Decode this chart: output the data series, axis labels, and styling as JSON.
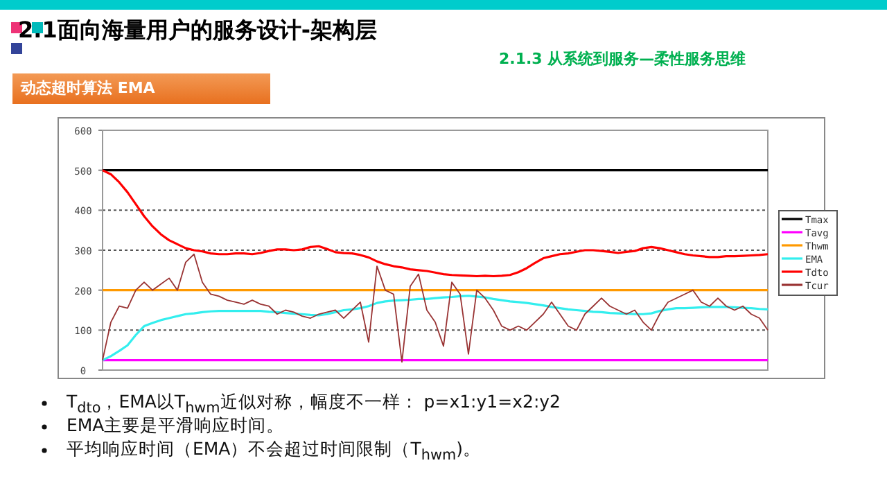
{
  "chart_data": {
    "type": "line",
    "title": "2.1面向海量用户的服务设计-架构层",
    "subtitle": "2.1.3 从系统到服务—柔性服务思维",
    "annotations": [
      "动态超时算法 EMA",
      "T$_{dto}$，EMA以T$_{hwm}$近似对称，幅度不一样：    p=x1:y1=x2:y2",
      "EMA主要是平滑响应时间。",
      "平均响应时间（EMA）不会超过时间限制（T$_{hwm}$)。"
    ],
    "categories": [
      null,
      null,
      null,
      null,
      null,
      null,
      null,
      null,
      null,
      null,
      null,
      null,
      null,
      null,
      null,
      null,
      null,
      null,
      null,
      null,
      null,
      null,
      null,
      null,
      null,
      null,
      null,
      null,
      null,
      null,
      null,
      null,
      null,
      null,
      null,
      null,
      null,
      null,
      null,
      null,
      null,
      null,
      null,
      null,
      null,
      null,
      null,
      null,
      null,
      null,
      null,
      null,
      null,
      null,
      null,
      null,
      null,
      null,
      null,
      null,
      null,
      null,
      null,
      null,
      null,
      null,
      null,
      null,
      null,
      null,
      null,
      null,
      null,
      null,
      null,
      null,
      null,
      null,
      null,
      null,
      null
    ],
    "ylim": [
      0,
      600
    ],
    "yticks": [
      0,
      100,
      200,
      300,
      400,
      500,
      600
    ],
    "grid": "y",
    "legend": "right",
    "series": [
      {
        "name": "Tmax",
        "color": "#000000",
        "values": [
          500,
          500,
          500,
          500,
          500,
          500,
          500,
          500,
          500,
          500,
          500,
          500,
          500,
          500,
          500,
          500,
          500,
          500,
          500,
          500,
          500,
          500,
          500,
          500,
          500,
          500,
          500,
          500,
          500,
          500,
          500,
          500,
          500,
          500,
          500,
          500,
          500,
          500,
          500,
          500,
          500,
          500,
          500,
          500,
          500,
          500,
          500,
          500,
          500,
          500,
          500,
          500,
          500,
          500,
          500,
          500,
          500,
          500,
          500,
          500,
          500,
          500,
          500,
          500,
          500,
          500,
          500,
          500,
          500,
          500,
          500,
          500,
          500,
          500,
          500,
          500,
          500,
          500,
          500,
          500,
          500
        ]
      },
      {
        "name": "Tavg",
        "color": "#ff00ff",
        "values": [
          25,
          25,
          25,
          25,
          25,
          25,
          25,
          25,
          25,
          25,
          25,
          25,
          25,
          25,
          25,
          25,
          25,
          25,
          25,
          25,
          25,
          25,
          25,
          25,
          25,
          25,
          25,
          25,
          25,
          25,
          25,
          25,
          25,
          25,
          25,
          25,
          25,
          25,
          25,
          25,
          25,
          25,
          25,
          25,
          25,
          25,
          25,
          25,
          25,
          25,
          25,
          25,
          25,
          25,
          25,
          25,
          25,
          25,
          25,
          25,
          25,
          25,
          25,
          25,
          25,
          25,
          25,
          25,
          25,
          25,
          25,
          25,
          25,
          25,
          25,
          25,
          25,
          25,
          25,
          25,
          25
        ]
      },
      {
        "name": "Thwm",
        "color": "#ff9900",
        "values": [
          200,
          200,
          200,
          200,
          200,
          200,
          200,
          200,
          200,
          200,
          200,
          200,
          200,
          200,
          200,
          200,
          200,
          200,
          200,
          200,
          200,
          200,
          200,
          200,
          200,
          200,
          200,
          200,
          200,
          200,
          200,
          200,
          200,
          200,
          200,
          200,
          200,
          200,
          200,
          200,
          200,
          200,
          200,
          200,
          200,
          200,
          200,
          200,
          200,
          200,
          200,
          200,
          200,
          200,
          200,
          200,
          200,
          200,
          200,
          200,
          200,
          200,
          200,
          200,
          200,
          200,
          200,
          200,
          200,
          200,
          200,
          200,
          200,
          200,
          200,
          200,
          200,
          200,
          200,
          200,
          200
        ]
      },
      {
        "name": "EMA",
        "color": "#33eeee",
        "values": [
          25,
          35,
          48,
          62,
          88,
          110,
          118,
          125,
          130,
          135,
          140,
          142,
          145,
          147,
          148,
          148,
          148,
          148,
          148,
          148,
          146,
          145,
          143,
          141,
          140,
          138,
          137,
          140,
          145,
          150,
          152,
          155,
          160,
          168,
          172,
          174,
          175,
          176,
          178,
          178,
          180,
          182,
          183,
          185,
          186,
          184,
          182,
          178,
          175,
          172,
          170,
          168,
          165,
          162,
          158,
          155,
          152,
          150,
          148,
          146,
          145,
          143,
          142,
          141,
          140,
          140,
          142,
          148,
          152,
          155,
          155,
          156,
          157,
          158,
          158,
          158,
          157,
          156,
          155,
          153,
          152
        ]
      },
      {
        "name": "Tdto",
        "color": "#ff0000",
        "values": [
          500,
          490,
          470,
          445,
          415,
          385,
          360,
          340,
          325,
          315,
          305,
          300,
          297,
          292,
          290,
          290,
          292,
          292,
          290,
          293,
          298,
          302,
          302,
          300,
          302,
          308,
          310,
          303,
          295,
          293,
          292,
          288,
          282,
          272,
          265,
          260,
          257,
          252,
          250,
          248,
          244,
          240,
          238,
          237,
          236,
          235,
          236,
          235,
          236,
          238,
          245,
          255,
          268,
          280,
          285,
          290,
          292,
          296,
          300,
          300,
          298,
          296,
          293,
          296,
          298,
          305,
          308,
          305,
          300,
          295,
          290,
          287,
          285,
          283,
          283,
          285,
          285,
          286,
          287,
          288,
          290
        ]
      },
      {
        "name": "Tcur",
        "color": "#993333",
        "values": [
          25,
          120,
          160,
          155,
          200,
          220,
          200,
          215,
          230,
          200,
          270,
          290,
          220,
          190,
          185,
          175,
          170,
          165,
          175,
          165,
          160,
          140,
          150,
          145,
          135,
          130,
          140,
          145,
          150,
          130,
          150,
          170,
          70,
          260,
          200,
          190,
          20,
          210,
          240,
          150,
          120,
          60,
          220,
          190,
          40,
          200,
          180,
          150,
          110,
          100,
          110,
          100,
          120,
          140,
          170,
          140,
          110,
          100,
          140,
          160,
          180,
          160,
          150,
          140,
          150,
          120,
          100,
          140,
          170,
          180,
          190,
          200,
          170,
          160,
          180,
          160,
          150,
          160,
          140,
          130,
          100
        ]
      }
    ]
  }
}
